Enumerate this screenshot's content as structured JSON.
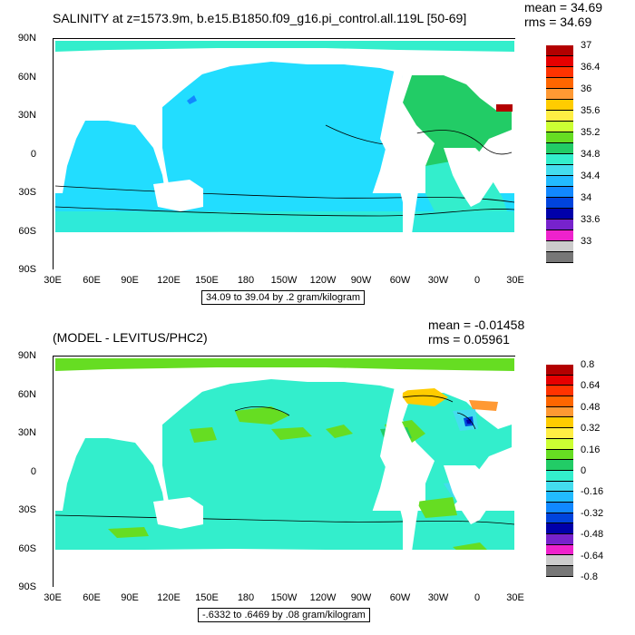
{
  "top": {
    "title": "SALINITY at z=1573.9m, b.e15.B1850.f09_g16.pi_control.all.119L [50-69]",
    "mean": "mean = 34.69",
    "rms": "rms = 34.69",
    "range": "34.09 to 39.04 by .2 gram/kilogram",
    "colorbar": {
      "labels": [
        "37",
        "36.4",
        "36",
        "35.6",
        "35.2",
        "34.8",
        "34.4",
        "34",
        "33.6",
        "33"
      ],
      "colors": [
        "#b30000",
        "#e60000",
        "#ff3300",
        "#ff6600",
        "#ff9933",
        "#ffcc00",
        "#ffee44",
        "#ccff33",
        "#66dd22",
        "#22cc66",
        "#33eecc",
        "#44ddee",
        "#22bbff",
        "#1188ff",
        "#0044dd",
        "#0000aa",
        "#7722cc",
        "#ee22cc",
        "#cccccc",
        "#777777"
      ]
    }
  },
  "bottom": {
    "title": "(MODEL - LEVITUS/PHC2)",
    "mean": "mean = -0.01458",
    "rms": "rms = 0.05961",
    "range": "-.6332 to .6469 by .08 gram/kilogram",
    "colorbar": {
      "labels": [
        "0.8",
        "0.64",
        "0.48",
        "0.32",
        "0.16",
        "0",
        "-0.16",
        "-0.32",
        "-0.48",
        "-0.64",
        "-0.8"
      ],
      "colors": [
        "#b30000",
        "#e60000",
        "#ff3300",
        "#ff6600",
        "#ff9933",
        "#ffcc00",
        "#ffee44",
        "#ccff33",
        "#66dd22",
        "#22cc66",
        "#33eecc",
        "#44ddee",
        "#22bbff",
        "#1188ff",
        "#0044dd",
        "#0000aa",
        "#7722cc",
        "#ee22cc",
        "#cccccc",
        "#777777"
      ]
    }
  },
  "axes": {
    "lat_labels": [
      "90N",
      "60N",
      "30N",
      "0",
      "30S",
      "60S",
      "90S"
    ],
    "lon_labels": [
      "30E",
      "60E",
      "90E",
      "120E",
      "150E",
      "180",
      "150W",
      "120W",
      "90W",
      "60W",
      "30W",
      "0",
      "30E"
    ]
  },
  "map_colors": {
    "ocean_top": "#22ddff",
    "ocean_top_alt": "#33eecc",
    "atlantic_top": "#22cc66",
    "ocean_bottom": "#33eecc",
    "anomaly_pos": "#22cc66",
    "anomaly_high": "#ffcc00",
    "anomaly_neg": "#44ddee",
    "anomaly_low": "#0044dd",
    "land": "#ffffff"
  }
}
